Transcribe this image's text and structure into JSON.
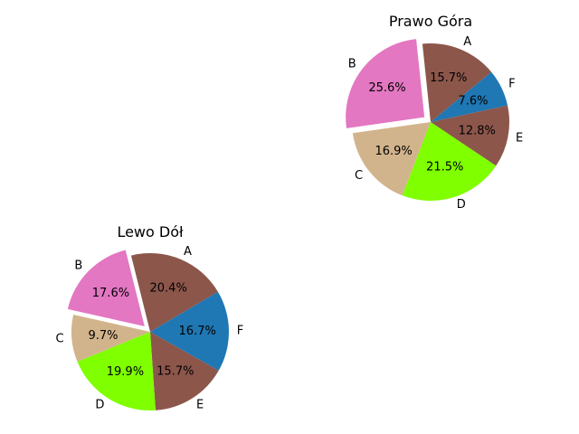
{
  "chart_data": [
    {
      "type": "pie",
      "title": "Prawo Góra",
      "labels": [
        "A",
        "F",
        "E",
        "D",
        "C",
        "B"
      ],
      "values": [
        15.7,
        7.6,
        12.8,
        21.5,
        16.9,
        25.6
      ],
      "pct_labels": [
        "15.7%",
        "7.6%",
        "12.8%",
        "21.5%",
        "16.9%",
        "25.6%"
      ],
      "colors": [
        "#8c564b",
        "#1f77b4",
        "#8c564b",
        "#7fff00",
        "#d2b48c",
        "#e377c2"
      ],
      "exploded": [
        "B"
      ],
      "start_angle_deg": 96,
      "direction": "clockwise"
    },
    {
      "type": "pie",
      "title": "Lewo Dół",
      "labels": [
        "A",
        "F",
        "E",
        "D",
        "C",
        "B"
      ],
      "values": [
        20.4,
        16.7,
        15.7,
        19.9,
        9.7,
        17.6
      ],
      "pct_labels": [
        "20.4%",
        "16.7%",
        "15.7%",
        "19.9%",
        "9.7%",
        "17.6%"
      ],
      "colors": [
        "#8c564b",
        "#1f77b4",
        "#8c564b",
        "#7fff00",
        "#d2b48c",
        "#e377c2"
      ],
      "exploded": [
        "B"
      ],
      "start_angle_deg": 104,
      "direction": "clockwise"
    }
  ]
}
